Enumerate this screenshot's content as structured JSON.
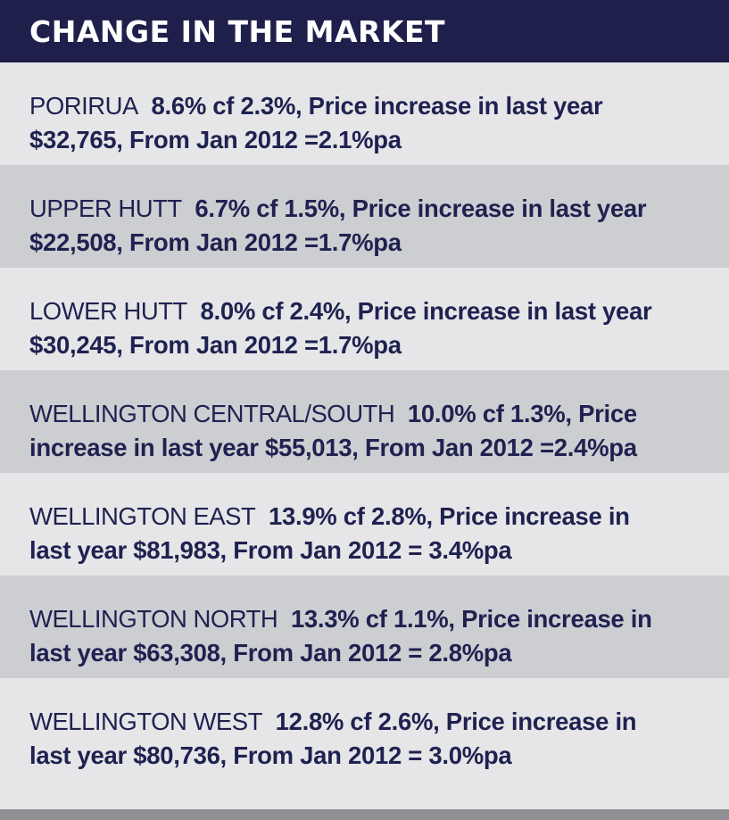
{
  "header": {
    "title": "CHANGE IN THE MARKET"
  },
  "rows": [
    {
      "area": "PORIRUA",
      "line1_stats": "8.6% cf 2.3%, Price increase in last year",
      "line2": "$32,765,  From Jan 2012 =2.1%pa",
      "shade": "light"
    },
    {
      "area": "UPPER HUTT",
      "line1_stats": "6.7% cf 1.5%, Price increase in last year",
      "line2": "$22,508,  From Jan 2012 =1.7%pa",
      "shade": "dark"
    },
    {
      "area": "LOWER HUTT",
      "line1_stats": "8.0% cf 2.4%, Price increase in last year",
      "line2": "$30,245,  From Jan 2012 =1.7%pa",
      "shade": "light"
    },
    {
      "area": "WELLINGTON CENTRAL/SOUTH",
      "line1_stats": "10.0% cf 1.3%, Price",
      "line2": "increase in last year $55,013,  From Jan 2012 =2.4%pa",
      "shade": "dark"
    },
    {
      "area": "WELLINGTON EAST",
      "line1_stats": "13.9% cf 2.8%, Price increase in",
      "line2": "last year $81,983,  From Jan 2012 = 3.4%pa",
      "shade": "light"
    },
    {
      "area": "WELLINGTON NORTH",
      "line1_stats": "13.3% cf 1.1%, Price increase in",
      "line2": "last year $63,308,  From Jan 2012 = 2.8%pa",
      "shade": "dark"
    },
    {
      "area": "WELLINGTON WEST",
      "line1_stats": "12.8% cf 2.6%, Price increase in",
      "line2": "last year $80,736,  From Jan 2012 = 3.0%pa",
      "shade": "light"
    }
  ],
  "colors": {
    "header_bg": "#1f1f4b",
    "text": "#1f2250",
    "row_light": "#e6e6e8",
    "row_dark": "#cdced1"
  }
}
